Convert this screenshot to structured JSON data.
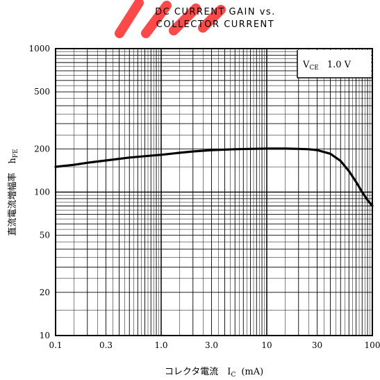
{
  "chart_data": {
    "type": "line",
    "title_lines": [
      "DC CURRENT GAIN vs.",
      "COLLECTOR CURRENT"
    ],
    "xlabel": "コレクタ電流　I",
    "xlabel_sub": "C",
    "xlabel_unit": "(mA)",
    "ylabel": "直流電流増幅率　h",
    "ylabel_sub": "FE",
    "condition": "V",
    "condition_sub": "CE",
    "condition_value": "1.0 V",
    "x_scale": "log",
    "y_scale": "log",
    "xlim": [
      0.1,
      100
    ],
    "ylim": [
      10,
      1000
    ],
    "x_ticks": [
      {
        "value": 0.1,
        "label": "0.1"
      },
      {
        "value": 0.3,
        "label": "0.3"
      },
      {
        "value": 1,
        "label": "1.0"
      },
      {
        "value": 3,
        "label": "3.0"
      },
      {
        "value": 10,
        "label": "10"
      },
      {
        "value": 30,
        "label": "30"
      },
      {
        "value": 100,
        "label": "100"
      }
    ],
    "y_ticks": [
      {
        "value": 10,
        "label": "10"
      },
      {
        "value": 20,
        "label": "20"
      },
      {
        "value": 50,
        "label": "50"
      },
      {
        "value": 100,
        "label": "100"
      },
      {
        "value": 200,
        "label": "200"
      },
      {
        "value": 500,
        "label": "500"
      },
      {
        "value": 1000,
        "label": "1000"
      }
    ],
    "grid": true,
    "series": [
      {
        "x": [
          0.1,
          0.15,
          0.2,
          0.3,
          0.5,
          0.7,
          1,
          1.5,
          2,
          3,
          5,
          7,
          10,
          15,
          20,
          25,
          30,
          40,
          50,
          60,
          70,
          80,
          90,
          100
        ],
        "y": [
          150,
          155,
          160,
          166,
          174,
          178,
          182,
          188,
          192,
          196,
          199,
          200,
          201,
          201,
          200,
          199,
          196,
          185,
          165,
          140,
          118,
          100,
          88,
          80
        ]
      }
    ]
  },
  "colors": {
    "line": "#000000",
    "grid": "#000000",
    "watermark": "#ff2a2a"
  }
}
